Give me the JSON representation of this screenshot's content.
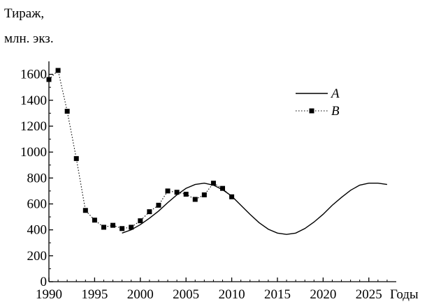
{
  "chart_data": {
    "type": "line",
    "ylabel_lines": [
      "Тираж,",
      "млн. экз."
    ],
    "xlabel": "Годы",
    "xlim": [
      1990,
      2028
    ],
    "ylim": [
      0,
      1700
    ],
    "x_ticks": [
      1990,
      1995,
      2000,
      2005,
      2010,
      2015,
      2020,
      2025
    ],
    "y_ticks": [
      0,
      200,
      400,
      600,
      800,
      1000,
      1200,
      1400,
      1600
    ],
    "grid": false,
    "legend_position": "top-right",
    "series": [
      {
        "name": "A",
        "style": "solid",
        "x": [
          1998,
          1999,
          2000,
          2001,
          2002,
          2003,
          2004,
          2005,
          2006,
          2007,
          2008,
          2009,
          2010,
          2011,
          2012,
          2013,
          2014,
          2015,
          2016,
          2017,
          2018,
          2019,
          2020,
          2021,
          2022,
          2023,
          2024,
          2025,
          2026,
          2027
        ],
        "y": [
          375,
          400,
          440,
          490,
          545,
          610,
          670,
          720,
          750,
          760,
          745,
          710,
          660,
          590,
          520,
          455,
          405,
          375,
          365,
          375,
          410,
          460,
          520,
          590,
          650,
          705,
          745,
          760,
          760,
          750
        ]
      },
      {
        "name": "B",
        "style": "dotted-markers",
        "x": [
          1990,
          1991,
          1992,
          1993,
          1994,
          1995,
          1996,
          1997,
          1998,
          1999,
          2000,
          2001,
          2002,
          2003,
          2004,
          2005,
          2006,
          2007,
          2008,
          2009,
          2010
        ],
        "y": [
          1560,
          1630,
          1315,
          950,
          550,
          475,
          420,
          435,
          410,
          420,
          470,
          540,
          590,
          700,
          690,
          675,
          635,
          670,
          760,
          720,
          655
        ]
      }
    ]
  }
}
